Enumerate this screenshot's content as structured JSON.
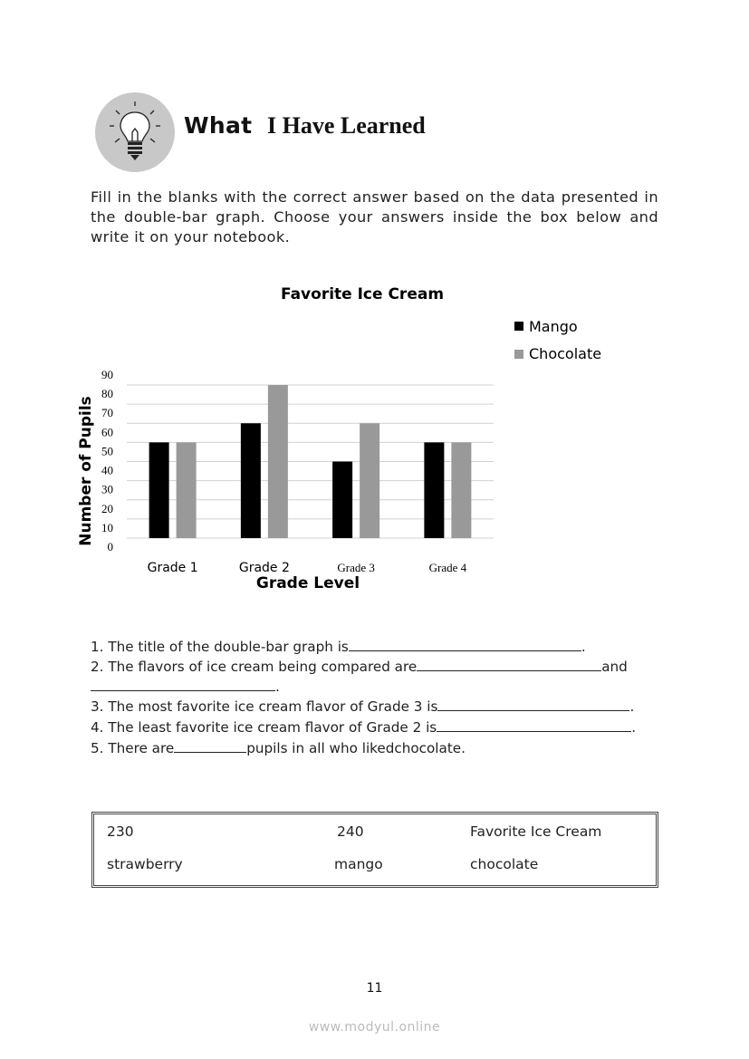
{
  "header": {
    "title_part1": "What",
    "title_part2": "I Have Learned",
    "icon": "lightbulb-icon"
  },
  "instructions": "Fill in the blanks with the correct answer based on the data presented in the double-bar graph. Choose your answers inside the box below and write it on your notebook.",
  "chart_data": {
    "type": "bar",
    "title": "Favorite Ice Cream",
    "xlabel": "Grade Level",
    "ylabel": "Number of Pupils",
    "categories": [
      "Grade 1",
      "Grade 2",
      "Grade 3",
      "Grade 4"
    ],
    "series": [
      {
        "name": "Mango",
        "values": [
          50,
          60,
          40,
          50
        ],
        "color": "#000000"
      },
      {
        "name": "Chocolate",
        "values": [
          50,
          80,
          60,
          50
        ],
        "color": "#999999"
      }
    ],
    "yticks": [
      "0",
      "10",
      "20",
      "30",
      "40",
      "50",
      "60",
      "70",
      "80",
      "90"
    ],
    "ylim": [
      0,
      90
    ],
    "grid": true,
    "legend": "top-right"
  },
  "questions": [
    {
      "num": "1.",
      "before": "The title of the double-bar graph is",
      "after": "."
    },
    {
      "num": "2.",
      "before": "The flavors of ice cream being compared are",
      "after": "and",
      "after2": "."
    },
    {
      "num": "3.",
      "before": "The most favorite ice cream flavor of Grade 3 is",
      "after": "."
    },
    {
      "num": "4.",
      "before": "The least favorite ice cream flavor of Grade 2 is",
      "after": "."
    },
    {
      "num": "5.",
      "before": "There are",
      "after": "pupils in all who likedchocolate."
    }
  ],
  "answer_box": [
    [
      "230",
      "240",
      "Favorite Ice Cream"
    ],
    [
      "strawberry",
      "mango",
      "chocolate"
    ]
  ],
  "page_number": "11",
  "watermark": "www.modyul.online"
}
